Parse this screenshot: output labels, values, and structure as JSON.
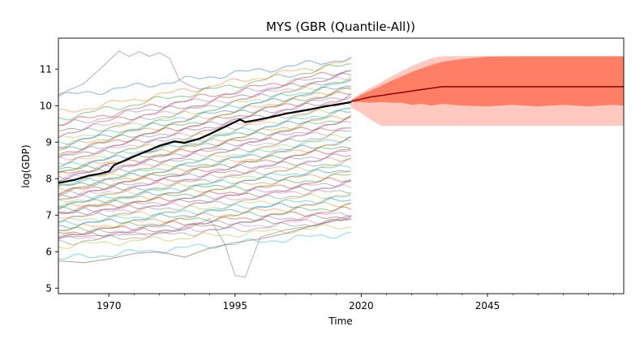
{
  "chart_data": {
    "type": "line",
    "title": "MYS (GBR (Quantile-All))",
    "xlabel": "Time",
    "ylabel": "log(GDP)",
    "xlim": [
      1960,
      2072
    ],
    "ylim": [
      4.85,
      11.85
    ],
    "x_ticks": [
      1970,
      1995,
      2020,
      2045
    ],
    "y_ticks": [
      5,
      6,
      7,
      8,
      9,
      10,
      11
    ],
    "x_minor_ticks": [
      1975,
      1980,
      1985,
      1990,
      2000,
      2005,
      2010,
      2015,
      2025,
      2030,
      2035,
      2040,
      2050,
      2055,
      2060,
      2065,
      2070
    ],
    "grid": false,
    "legend": "none",
    "colors": {
      "main_series": "#000000",
      "forecast_median": "#8b0000",
      "band_inner": "#ff7f66",
      "band_outer": "#ffc9c0"
    },
    "main_series": {
      "x": [
        1960,
        1963,
        1966,
        1968,
        1970,
        1971,
        1974,
        1976,
        1978,
        1980,
        1983,
        1985,
        1988,
        1990,
        1993,
        1996,
        1997,
        1999,
        2002,
        2005,
        2008,
        2010,
        2013,
        2016,
        2018
      ],
      "y": [
        7.88,
        7.96,
        8.08,
        8.13,
        8.2,
        8.37,
        8.55,
        8.67,
        8.78,
        8.9,
        9.02,
        8.98,
        9.1,
        9.22,
        9.42,
        9.62,
        9.55,
        9.6,
        9.68,
        9.78,
        9.85,
        9.9,
        9.98,
        10.05,
        10.1
      ]
    },
    "forecast": {
      "x": [
        2018,
        2020,
        2022,
        2024,
        2026,
        2028,
        2030,
        2032,
        2034,
        2036,
        2040,
        2045,
        2050,
        2055,
        2060,
        2065,
        2070,
        2072
      ],
      "median": [
        10.12,
        10.18,
        10.24,
        10.28,
        10.32,
        10.36,
        10.4,
        10.44,
        10.48,
        10.52,
        10.52,
        10.52,
        10.52,
        10.52,
        10.52,
        10.52,
        10.52,
        10.52
      ],
      "inner_upper": [
        10.14,
        10.3,
        10.42,
        10.55,
        10.68,
        10.8,
        10.92,
        11.02,
        11.12,
        11.2,
        11.28,
        11.34,
        11.35,
        11.35,
        11.35,
        11.35,
        11.35,
        11.35
      ],
      "inner_lower": [
        10.1,
        10.1,
        10.08,
        10.1,
        10.08,
        10.08,
        10.02,
        10.05,
        10.0,
        10.05,
        10.0,
        9.98,
        10.02,
        9.98,
        10.02,
        9.98,
        10.02,
        10.0
      ],
      "outer_upper": [
        10.16,
        10.35,
        10.5,
        10.65,
        10.8,
        10.95,
        11.08,
        11.2,
        11.3,
        11.35,
        11.36,
        11.36,
        11.36,
        11.36,
        11.36,
        11.36,
        11.36,
        11.36
      ],
      "outer_lower": [
        9.95,
        9.8,
        9.6,
        9.45,
        9.45,
        9.45,
        9.45,
        9.45,
        9.45,
        9.45,
        9.45,
        9.45,
        9.45,
        9.45,
        9.45,
        9.45,
        9.45,
        9.45
      ]
    },
    "background_series": {
      "x_start": 1960,
      "x_end": 2018,
      "colors": [
        "#1f77b4",
        "#ff7f0e",
        "#2ca02c",
        "#d62728",
        "#9467bd",
        "#8c564b",
        "#e377c2",
        "#7f7f7f",
        "#bcbd22",
        "#17becf"
      ],
      "lines": [
        [
          10.25,
          11.3
        ],
        [
          9.8,
          11.22
        ],
        [
          9.65,
          11.15
        ],
        [
          9.5,
          10.98
        ],
        [
          9.45,
          10.92
        ],
        [
          9.3,
          10.85
        ],
        [
          9.22,
          10.8
        ],
        [
          9.15,
          10.75
        ],
        [
          9.05,
          10.7
        ],
        [
          8.95,
          10.65
        ],
        [
          8.9,
          10.58
        ],
        [
          8.85,
          10.5
        ],
        [
          8.75,
          10.45
        ],
        [
          8.7,
          10.38
        ],
        [
          8.62,
          10.3
        ],
        [
          8.55,
          10.25
        ],
        [
          8.5,
          10.15
        ],
        [
          8.45,
          10.08
        ],
        [
          8.38,
          9.98
        ],
        [
          8.3,
          9.9
        ],
        [
          8.25,
          9.85
        ],
        [
          8.2,
          9.75
        ],
        [
          8.15,
          9.7
        ],
        [
          8.1,
          9.6
        ],
        [
          8.05,
          9.55
        ],
        [
          8.0,
          9.45
        ],
        [
          7.95,
          9.4
        ],
        [
          7.9,
          9.3
        ],
        [
          7.85,
          9.2
        ],
        [
          7.8,
          9.15
        ],
        [
          7.75,
          9.05
        ],
        [
          7.7,
          9.0
        ],
        [
          7.65,
          8.9
        ],
        [
          7.6,
          8.85
        ],
        [
          7.55,
          8.75
        ],
        [
          7.5,
          8.65
        ],
        [
          7.45,
          8.6
        ],
        [
          7.4,
          8.5
        ],
        [
          7.35,
          8.45
        ],
        [
          7.3,
          8.35
        ],
        [
          7.25,
          8.28
        ],
        [
          7.2,
          8.2
        ],
        [
          7.15,
          8.1
        ],
        [
          7.1,
          8.0
        ],
        [
          7.05,
          7.92
        ],
        [
          7.0,
          7.85
        ],
        [
          6.95,
          7.78
        ],
        [
          6.9,
          7.7
        ],
        [
          6.8,
          7.6
        ],
        [
          6.75,
          7.5
        ],
        [
          6.7,
          7.42
        ],
        [
          6.6,
          7.35
        ],
        [
          6.55,
          7.25
        ],
        [
          6.5,
          7.15
        ],
        [
          6.45,
          7.05
        ],
        [
          6.4,
          7.0
        ],
        [
          6.35,
          6.9
        ],
        [
          6.25,
          6.85
        ],
        [
          6.15,
          6.7
        ],
        [
          5.8,
          6.5
        ]
      ],
      "special_lines": [
        {
          "x": [
            1960,
            1965,
            1969,
            1972,
            1974,
            1976,
            1978,
            1980,
            1982,
            1984,
            1986,
            1988,
            1990
          ],
          "y": [
            10.3,
            10.6,
            11.1,
            11.5,
            11.35,
            11.48,
            11.35,
            11.45,
            11.3,
            10.7,
            10.55,
            10.45,
            10.5
          ],
          "color": "#9467bd"
        },
        {
          "x": [
            1960,
            1970,
            1980,
            1985,
            1990,
            1993,
            1995,
            1997,
            2000,
            2005,
            2010,
            2018
          ],
          "y": [
            6.4,
            6.45,
            6.5,
            6.6,
            6.9,
            6.2,
            5.35,
            5.3,
            6.4,
            6.6,
            6.7,
            7.0
          ],
          "color": "#7f7f7f"
        },
        {
          "x": [
            1960,
            1965,
            1970,
            1975,
            1980,
            1985,
            1990,
            1995,
            2000,
            2005,
            2010,
            2015,
            2018
          ],
          "y": [
            5.75,
            5.7,
            5.8,
            5.95,
            6.0,
            5.85,
            6.1,
            6.25,
            6.35,
            6.5,
            6.7,
            6.85,
            6.9
          ],
          "color": "#8c564b"
        }
      ]
    }
  }
}
